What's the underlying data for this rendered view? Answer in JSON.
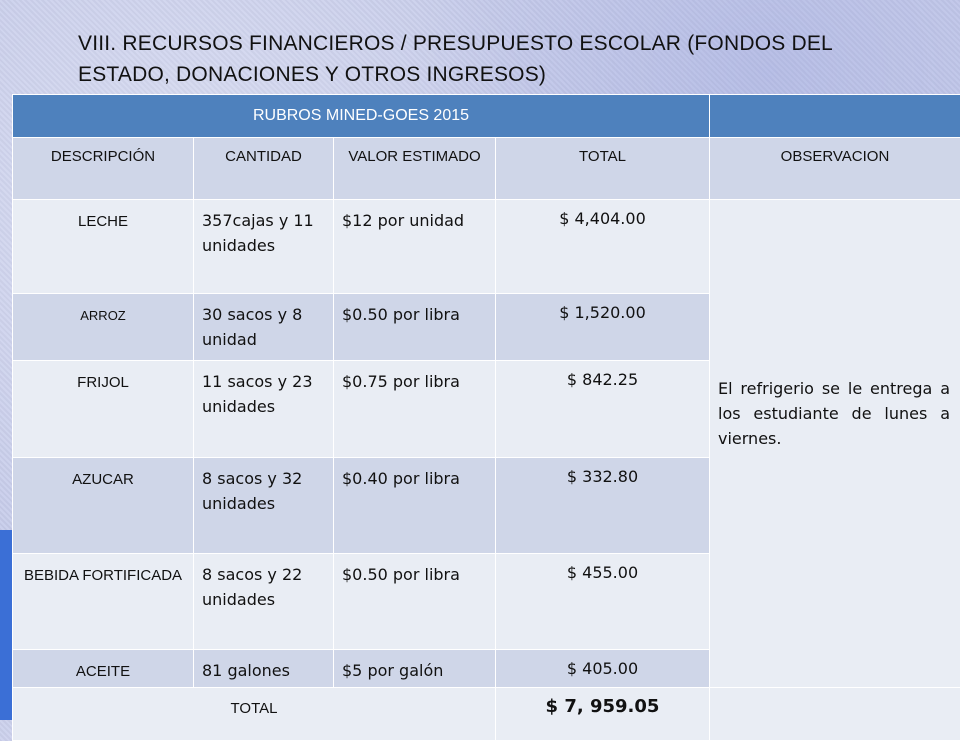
{
  "title": "VIII. RECURSOS FINANCIEROS / PRESUPUESTO ESCOLAR (FONDOS DEL ESTADO, DONACIONES Y OTROS INGRESOS)",
  "table": {
    "section_header": "RUBROS MINED-GOES  2015",
    "columns": [
      "DESCRIPCIÓN",
      "CANTIDAD",
      "VALOR ESTIMADO",
      "TOTAL",
      "OBSERVACION"
    ],
    "rows": [
      {
        "descripcion": "LECHE",
        "cantidad": "357cajas y 11 unidades",
        "valor": "$12 por unidad",
        "total": "$ 4,404.00"
      },
      {
        "descripcion": "ARROZ",
        "cantidad": "30 sacos y 8 unidad",
        "valor": "$0.50 por libra",
        "total": "$ 1,520.00"
      },
      {
        "descripcion": "FRIJOL",
        "cantidad": "11 sacos y 23 unidades",
        "valor": "$0.75 por libra",
        "total": "$ 842.25"
      },
      {
        "descripcion": "AZUCAR",
        "cantidad": "8 sacos y 32 unidades",
        "valor": "$0.40 por libra",
        "total": "$ 332.80"
      },
      {
        "descripcion": "BEBIDA FORTIFICADA",
        "cantidad": "8 sacos y 22 unidades",
        "valor": "$0.50 por libra",
        "total": "$ 455.00"
      },
      {
        "descripcion": "ACEITE",
        "cantidad": "81 galones",
        "valor": "$5 por galón",
        "total": "$ 405.00"
      }
    ],
    "observacion": "El refrigerio se le entrega a los estudiante de lunes a viernes.",
    "total_label": "TOTAL",
    "total_value": "$ 7, 959.05"
  }
}
